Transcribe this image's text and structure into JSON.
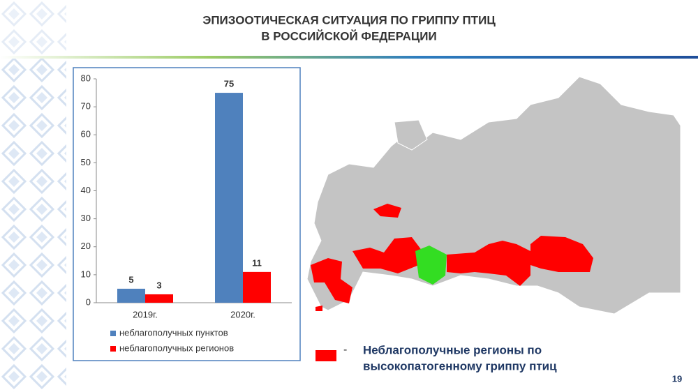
{
  "header": {
    "title_lines": [
      "ЭПИЗООТИЧЕСКАЯ СИТУАЦИЯ ПО ГРИППУ ПТИЦ",
      "В РОССИЙСКОЙ ФЕДЕРАЦИИ"
    ]
  },
  "chart_data": {
    "type": "bar",
    "categories": [
      "2019г.",
      "2020г."
    ],
    "series": [
      {
        "name": "неблагополучных пунктов",
        "color": "#4f81bd",
        "values": [
          5,
          75
        ]
      },
      {
        "name": "неблагополучных регионов",
        "color": "#ff0000",
        "values": [
          3,
          11
        ]
      }
    ],
    "ylim": [
      0,
      80
    ],
    "yticks": [
      0,
      10,
      20,
      30,
      40,
      50,
      60,
      70,
      80
    ],
    "grid": false
  },
  "map_legend": {
    "dash": "-",
    "lines": [
      "Неблагополучные регионы по",
      "высокопатогенному гриппу птиц"
    ]
  },
  "page_number": "19"
}
